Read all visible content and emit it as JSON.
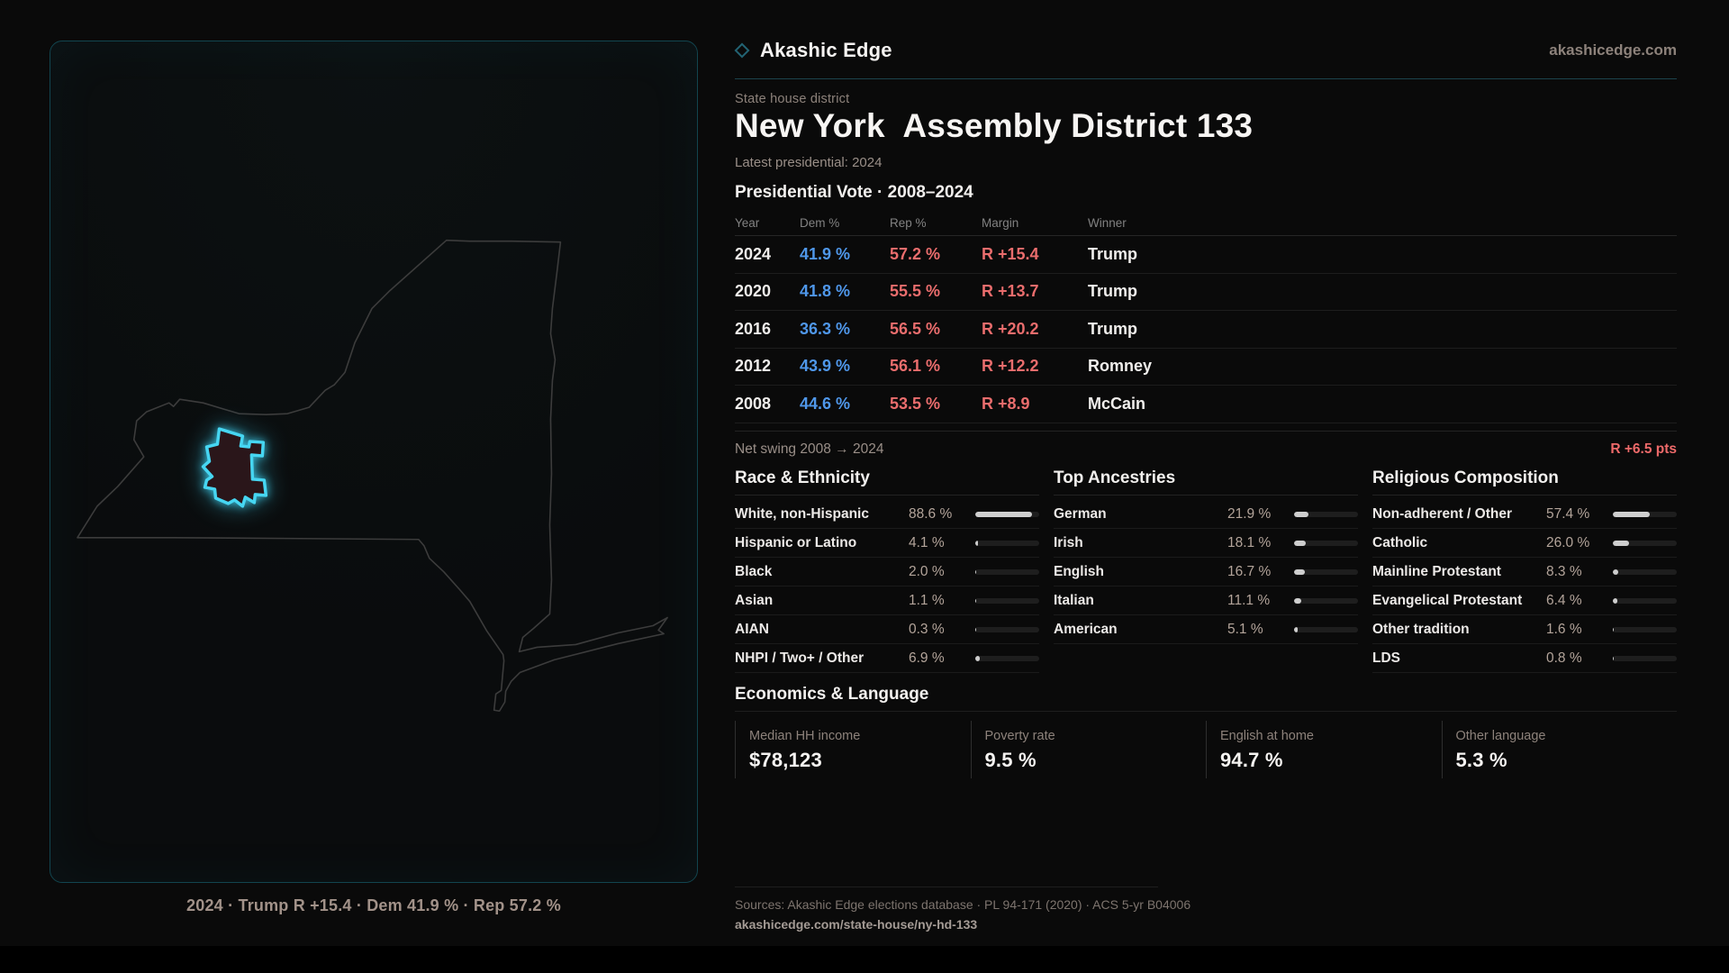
{
  "brand": {
    "name": "Akashic Edge",
    "domain": "akashicedge.com",
    "logo_icon": "diamond-icon",
    "accent_color": "#46d6f2"
  },
  "header": {
    "kicker": "State house district",
    "title": "New York  Assembly District 133",
    "meta": "Latest presidential: 2024"
  },
  "map": {
    "caption": "2024 · Trump R +15.4 · Dem 41.9 % · Rep 57.2 %",
    "district_outline_color": "#46d6f2",
    "district_fill_color": "#2a161a",
    "state_outline_color": "#3c3c3c"
  },
  "vote": {
    "title": "Presidential Vote · 2008–2024",
    "columns": [
      "Year",
      "Dem %",
      "Rep %",
      "Margin",
      "Winner"
    ],
    "rows": [
      {
        "year": "2024",
        "dem": "41.9 %",
        "rep": "57.2 %",
        "margin": "R +15.4",
        "winner": "Trump"
      },
      {
        "year": "2020",
        "dem": "41.8 %",
        "rep": "55.5 %",
        "margin": "R +13.7",
        "winner": "Trump"
      },
      {
        "year": "2016",
        "dem": "36.3 %",
        "rep": "56.5 %",
        "margin": "R +20.2",
        "winner": "Trump"
      },
      {
        "year": "2012",
        "dem": "43.9 %",
        "rep": "56.1 %",
        "margin": "R +12.2",
        "winner": "Romney"
      },
      {
        "year": "2008",
        "dem": "44.6 %",
        "rep": "53.5 %",
        "margin": "R +8.9",
        "winner": "McCain"
      }
    ],
    "dem_color": "#4f97ea",
    "rep_color": "#ea6d6d"
  },
  "net_swing": {
    "label": "Net swing 2008 → 2024",
    "value": "R +6.5 pts"
  },
  "demographics": {
    "sections": [
      {
        "title": "Race & Ethnicity",
        "rows": [
          {
            "label": "White, non-Hispanic",
            "value": "88.6 %",
            "pct": 88.6
          },
          {
            "label": "Hispanic or Latino",
            "value": "4.1 %",
            "pct": 4.1
          },
          {
            "label": "Black",
            "value": "2.0 %",
            "pct": 2.0
          },
          {
            "label": "Asian",
            "value": "1.1 %",
            "pct": 1.1
          },
          {
            "label": "AIAN",
            "value": "0.3 %",
            "pct": 0.3
          },
          {
            "label": "NHPI / Two+ / Other",
            "value": "6.9 %",
            "pct": 6.9
          }
        ]
      },
      {
        "title": "Top Ancestries",
        "rows": [
          {
            "label": "German",
            "value": "21.9 %",
            "pct": 21.9
          },
          {
            "label": "Irish",
            "value": "18.1 %",
            "pct": 18.1
          },
          {
            "label": "English",
            "value": "16.7 %",
            "pct": 16.7
          },
          {
            "label": "Italian",
            "value": "11.1 %",
            "pct": 11.1
          },
          {
            "label": "American",
            "value": "5.1 %",
            "pct": 5.1
          }
        ]
      },
      {
        "title": "Religious Composition",
        "rows": [
          {
            "label": "Non-adherent / Other",
            "value": "57.4 %",
            "pct": 57.4
          },
          {
            "label": "Catholic",
            "value": "26.0 %",
            "pct": 26.0
          },
          {
            "label": "Mainline Protestant",
            "value": "8.3 %",
            "pct": 8.3
          },
          {
            "label": "Evangelical Protestant",
            "value": "6.4 %",
            "pct": 6.4
          },
          {
            "label": "Other tradition",
            "value": "1.6 %",
            "pct": 1.6
          },
          {
            "label": "LDS",
            "value": "0.8 %",
            "pct": 0.8
          }
        ]
      }
    ],
    "bar_fill_color": "#cecece",
    "bar_track_color": "#1e1e1e"
  },
  "economics": {
    "title": "Economics & Language",
    "stats": [
      {
        "label": "Median HH income",
        "value": "$78,123"
      },
      {
        "label": "Poverty rate",
        "value": "9.5 %"
      },
      {
        "label": "English at home",
        "value": "94.7 %"
      },
      {
        "label": "Other language",
        "value": "5.3 %"
      }
    ]
  },
  "footer": {
    "sources": "Sources: Akashic Edge elections database · PL 94-171 (2020) · ACS 5-yr B04006",
    "permalink": "akashicedge.com/state-house/ny-hd-133"
  },
  "chart_data": [
    {
      "type": "table",
      "title": "Presidential Vote · 2008–2024",
      "columns": [
        "Year",
        "Dem %",
        "Rep %",
        "Margin",
        "Winner"
      ],
      "rows": [
        [
          "2024",
          "41.9 %",
          "57.2 %",
          "R +15.4",
          "Trump"
        ],
        [
          "2020",
          "41.8 %",
          "55.5 %",
          "R +13.7",
          "Trump"
        ],
        [
          "2016",
          "36.3 %",
          "56.5 %",
          "R +20.2",
          "Trump"
        ],
        [
          "2012",
          "43.9 %",
          "56.1 %",
          "R +12.2",
          "Romney"
        ],
        [
          "2008",
          "44.6 %",
          "53.5 %",
          "R +8.9",
          "McCain"
        ]
      ],
      "annotations": [
        "Net swing 2008 → 2024: R +6.5 pts"
      ]
    },
    {
      "type": "bar",
      "title": "Race & Ethnicity",
      "orientation": "horizontal",
      "categories": [
        "White, non-Hispanic",
        "Hispanic or Latino",
        "Black",
        "Asian",
        "AIAN",
        "NHPI / Two+ / Other"
      ],
      "values": [
        88.6,
        4.1,
        2.0,
        1.1,
        0.3,
        6.9
      ],
      "xlim": [
        0,
        100
      ],
      "value_suffix": " %",
      "grid": false,
      "legend": false
    },
    {
      "type": "bar",
      "title": "Top Ancestries",
      "orientation": "horizontal",
      "categories": [
        "German",
        "Irish",
        "English",
        "Italian",
        "American"
      ],
      "values": [
        21.9,
        18.1,
        16.7,
        11.1,
        5.1
      ],
      "xlim": [
        0,
        100
      ],
      "value_suffix": " %",
      "grid": false,
      "legend": false
    },
    {
      "type": "bar",
      "title": "Religious Composition",
      "orientation": "horizontal",
      "categories": [
        "Non-adherent / Other",
        "Catholic",
        "Mainline Protestant",
        "Evangelical Protestant",
        "Other tradition",
        "LDS"
      ],
      "values": [
        57.4,
        26.0,
        8.3,
        6.4,
        1.6,
        0.8
      ],
      "xlim": [
        0,
        100
      ],
      "value_suffix": " %",
      "grid": false,
      "legend": false
    },
    {
      "type": "table",
      "title": "Economics & Language",
      "columns": [
        "Median HH income",
        "Poverty rate",
        "English at home",
        "Other language"
      ],
      "rows": [
        [
          "$78,123",
          "9.5 %",
          "94.7 %",
          "5.3 %"
        ]
      ]
    }
  ]
}
